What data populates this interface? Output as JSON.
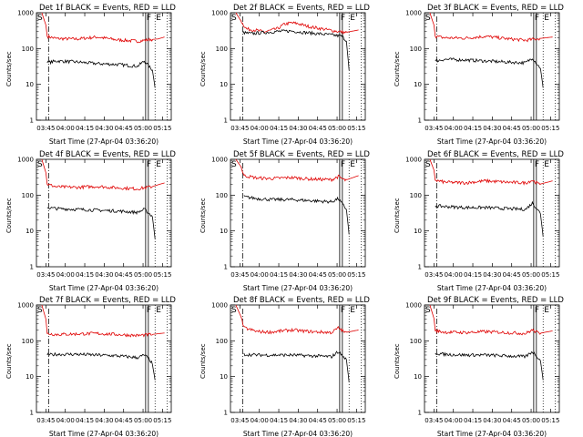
{
  "figure": {
    "start_time_label": "Start Time (27-Apr-04 03:36:20)"
  },
  "chart_data": [
    {
      "type": "line",
      "title": "Det 1f BLACK = Events, RED = LLD",
      "ylabel": "Counts/sec",
      "xlabel": "Start Time (27-Apr-04 03:36:20)",
      "y_scale": "log",
      "ylim": [
        1,
        1000
      ],
      "y_ticks": [
        "1",
        "10",
        "100",
        "1000"
      ],
      "x_tick_labels": [
        "03:45",
        "04:00",
        "04:15",
        "04:30",
        "04:45",
        "05:00",
        "05:15"
      ],
      "markers": [
        "S",
        "F",
        "E"
      ],
      "series": [
        {
          "color": "#e00000",
          "points": [
            [
              4,
              1000
            ],
            [
              7,
              450
            ],
            [
              8,
              220
            ],
            [
              15,
              190
            ],
            [
              30,
              185
            ],
            [
              45,
              210
            ],
            [
              60,
              175
            ],
            [
              75,
              160
            ],
            [
              85,
              180
            ],
            [
              90,
              185
            ],
            [
              95,
              210
            ]
          ]
        },
        {
          "color": "#000000",
          "points": [
            [
              8,
              40
            ],
            [
              15,
              45
            ],
            [
              30,
              42
            ],
            [
              45,
              38
            ],
            [
              60,
              36
            ],
            [
              75,
              32
            ],
            [
              80,
              45
            ],
            [
              84,
              30
            ],
            [
              86,
              25
            ],
            [
              88,
              8
            ]
          ]
        }
      ]
    },
    {
      "type": "line",
      "title": "Det 2f BLACK = Events, RED = LLD",
      "ylabel": "Counts/sec",
      "xlabel": "Start Time (27-Apr-04 03:36:20)",
      "y_scale": "log",
      "ylim": [
        1,
        1000
      ],
      "y_ticks": [
        "1",
        "10",
        "100",
        "1000"
      ],
      "x_tick_labels": [
        "03:45",
        "04:00",
        "04:15",
        "04:30",
        "04:45",
        "05:00",
        "05:15"
      ],
      "markers": [
        "S",
        "F",
        "E"
      ],
      "series": [
        {
          "color": "#e00000",
          "points": [
            [
              4,
              1000
            ],
            [
              9,
              500
            ],
            [
              12,
              350
            ],
            [
              18,
              330
            ],
            [
              25,
              290
            ],
            [
              35,
              360
            ],
            [
              40,
              480
            ],
            [
              45,
              520
            ],
            [
              50,
              500
            ],
            [
              55,
              440
            ],
            [
              60,
              400
            ],
            [
              75,
              320
            ],
            [
              85,
              280
            ],
            [
              95,
              330
            ]
          ]
        },
        {
          "color": "#000000",
          "points": [
            [
              9,
              280
            ],
            [
              15,
              260
            ],
            [
              25,
              280
            ],
            [
              35,
              300
            ],
            [
              45,
              310
            ],
            [
              55,
              280
            ],
            [
              65,
              260
            ],
            [
              75,
              240
            ],
            [
              83,
              220
            ],
            [
              86,
              160
            ],
            [
              88,
              25
            ]
          ]
        }
      ]
    },
    {
      "type": "line",
      "title": "Det 3f BLACK = Events, RED = LLD",
      "ylabel": "Counts/sec",
      "xlabel": "Start Time (27-Apr-04 03:36:20)",
      "y_scale": "log",
      "ylim": [
        1,
        1000
      ],
      "y_ticks": [
        "1",
        "10",
        "100",
        "1000"
      ],
      "x_tick_labels": [
        "03:45",
        "04:00",
        "04:15",
        "04:30",
        "04:45",
        "05:00",
        "05:15"
      ],
      "markers": [
        "S",
        "F",
        "E"
      ],
      "series": [
        {
          "color": "#e00000",
          "points": [
            [
              4,
              1000
            ],
            [
              7,
              450
            ],
            [
              8,
              220
            ],
            [
              15,
              200
            ],
            [
              30,
              195
            ],
            [
              45,
              220
            ],
            [
              60,
              190
            ],
            [
              75,
              170
            ],
            [
              85,
              190
            ],
            [
              95,
              210
            ]
          ]
        },
        {
          "color": "#000000",
          "points": [
            [
              8,
              45
            ],
            [
              15,
              50
            ],
            [
              30,
              48
            ],
            [
              45,
              45
            ],
            [
              60,
              42
            ],
            [
              75,
              40
            ],
            [
              80,
              55
            ],
            [
              84,
              35
            ],
            [
              86,
              28
            ],
            [
              88,
              8
            ]
          ]
        }
      ]
    },
    {
      "type": "line",
      "title": "Det 4f BLACK = Events, RED = LLD",
      "ylabel": "Counts/sec",
      "xlabel": "Start Time (27-Apr-04 03:36:20)",
      "y_scale": "log",
      "ylim": [
        1,
        1000
      ],
      "y_ticks": [
        "1",
        "10",
        "100",
        "1000"
      ],
      "x_tick_labels": [
        "03:45",
        "04:00",
        "04:15",
        "04:30",
        "04:45",
        "05:00",
        "05:15"
      ],
      "markers": [
        "S",
        "F",
        "E"
      ],
      "series": [
        {
          "color": "#e00000",
          "points": [
            [
              4,
              1000
            ],
            [
              7,
              420
            ],
            [
              8,
              200
            ],
            [
              15,
              170
            ],
            [
              30,
              165
            ],
            [
              45,
              175
            ],
            [
              60,
              160
            ],
            [
              75,
              150
            ],
            [
              85,
              170
            ],
            [
              95,
              220
            ]
          ]
        },
        {
          "color": "#000000",
          "points": [
            [
              8,
              45
            ],
            [
              15,
              42
            ],
            [
              30,
              40
            ],
            [
              45,
              38
            ],
            [
              60,
              36
            ],
            [
              75,
              33
            ],
            [
              80,
              40
            ],
            [
              84,
              30
            ],
            [
              86,
              25
            ],
            [
              88,
              6
            ]
          ]
        }
      ]
    },
    {
      "type": "line",
      "title": "Det 5f BLACK = Events, RED = LLD",
      "ylabel": "Counts/sec",
      "xlabel": "Start Time (27-Apr-04 03:36:20)",
      "y_scale": "log",
      "ylim": [
        1,
        1000
      ],
      "y_ticks": [
        "1",
        "10",
        "100",
        "1000"
      ],
      "x_tick_labels": [
        "03:45",
        "04:00",
        "04:15",
        "04:30",
        "04:45",
        "05:00",
        "05:15"
      ],
      "markers": [
        "S",
        "F",
        "E"
      ],
      "series": [
        {
          "color": "#e00000",
          "points": [
            [
              4,
              1000
            ],
            [
              8,
              600
            ],
            [
              10,
              350
            ],
            [
              20,
              300
            ],
            [
              30,
              290
            ],
            [
              45,
              310
            ],
            [
              60,
              280
            ],
            [
              75,
              270
            ],
            [
              80,
              330
            ],
            [
              85,
              260
            ],
            [
              95,
              350
            ]
          ]
        },
        {
          "color": "#000000",
          "points": [
            [
              10,
              90
            ],
            [
              20,
              80
            ],
            [
              30,
              75
            ],
            [
              45,
              75
            ],
            [
              60,
              70
            ],
            [
              75,
              65
            ],
            [
              80,
              80
            ],
            [
              84,
              50
            ],
            [
              86,
              40
            ],
            [
              88,
              8
            ]
          ]
        }
      ]
    },
    {
      "type": "line",
      "title": "Det 6f BLACK = Events, RED = LLD",
      "ylabel": "Counts/sec",
      "xlabel": "Start Time (27-Apr-04 03:36:20)",
      "y_scale": "log",
      "ylim": [
        1,
        1000
      ],
      "y_ticks": [
        "1",
        "10",
        "100",
        "1000"
      ],
      "x_tick_labels": [
        "03:45",
        "04:00",
        "04:15",
        "04:30",
        "04:45",
        "05:00",
        "05:15"
      ],
      "markers": [
        "S",
        "F",
        "E"
      ],
      "series": [
        {
          "color": "#e00000",
          "points": [
            [
              4,
              1000
            ],
            [
              7,
              500
            ],
            [
              8,
              260
            ],
            [
              15,
              230
            ],
            [
              30,
              220
            ],
            [
              45,
              250
            ],
            [
              60,
              230
            ],
            [
              75,
              220
            ],
            [
              80,
              260
            ],
            [
              85,
              200
            ],
            [
              95,
              250
            ]
          ]
        },
        {
          "color": "#000000",
          "points": [
            [
              8,
              50
            ],
            [
              15,
              48
            ],
            [
              30,
              45
            ],
            [
              45,
              45
            ],
            [
              60,
              42
            ],
            [
              75,
              40
            ],
            [
              80,
              60
            ],
            [
              84,
              40
            ],
            [
              86,
              30
            ],
            [
              88,
              7
            ]
          ]
        }
      ]
    },
    {
      "type": "line",
      "title": "Det 7f BLACK = Events, RED = LLD",
      "ylabel": "Counts/sec",
      "xlabel": "Start Time (27-Apr-04 03:36:20)",
      "y_scale": "log",
      "ylim": [
        1,
        1000
      ],
      "y_ticks": [
        "1",
        "10",
        "100",
        "1000"
      ],
      "x_tick_labels": [
        "03:45",
        "04:00",
        "04:15",
        "04:30",
        "04:45",
        "05:00",
        "05:15"
      ],
      "markers": [
        "S",
        "F",
        "E"
      ],
      "series": [
        {
          "color": "#e00000",
          "points": [
            [
              4,
              1000
            ],
            [
              7,
              400
            ],
            [
              8,
              160
            ],
            [
              15,
              150
            ],
            [
              30,
              155
            ],
            [
              45,
              160
            ],
            [
              60,
              150
            ],
            [
              75,
              140
            ],
            [
              85,
              150
            ],
            [
              95,
              165
            ]
          ]
        },
        {
          "color": "#000000",
          "points": [
            [
              8,
              40
            ],
            [
              15,
              42
            ],
            [
              30,
              42
            ],
            [
              45,
              40
            ],
            [
              60,
              38
            ],
            [
              75,
              34
            ],
            [
              80,
              40
            ],
            [
              84,
              30
            ],
            [
              86,
              22
            ],
            [
              88,
              8
            ]
          ]
        }
      ]
    },
    {
      "type": "line",
      "title": "Det 8f BLACK = Events, RED = LLD",
      "ylabel": "Counts/sec",
      "xlabel": "Start Time (27-Apr-04 03:36:20)",
      "y_scale": "log",
      "ylim": [
        1,
        1000
      ],
      "y_ticks": [
        "1",
        "10",
        "100",
        "1000"
      ],
      "x_tick_labels": [
        "03:45",
        "04:00",
        "04:15",
        "04:30",
        "04:45",
        "05:00",
        "05:15"
      ],
      "markers": [
        "S",
        "F",
        "E"
      ],
      "series": [
        {
          "color": "#e00000",
          "points": [
            [
              4,
              1000
            ],
            [
              8,
              450
            ],
            [
              10,
              230
            ],
            [
              20,
              180
            ],
            [
              30,
              175
            ],
            [
              45,
              200
            ],
            [
              60,
              180
            ],
            [
              75,
              170
            ],
            [
              80,
              230
            ],
            [
              85,
              170
            ],
            [
              95,
              200
            ]
          ]
        },
        {
          "color": "#000000",
          "points": [
            [
              10,
              42
            ],
            [
              20,
              40
            ],
            [
              30,
              40
            ],
            [
              45,
              40
            ],
            [
              60,
              38
            ],
            [
              75,
              36
            ],
            [
              80,
              50
            ],
            [
              84,
              35
            ],
            [
              86,
              30
            ],
            [
              88,
              7
            ]
          ]
        }
      ]
    },
    {
      "type": "line",
      "title": "Det 9f BLACK = Events, RED = LLD",
      "ylabel": "Counts/sec",
      "xlabel": "Start Time (27-Apr-04 03:36:20)",
      "y_scale": "log",
      "ylim": [
        1,
        1000
      ],
      "y_ticks": [
        "1",
        "10",
        "100",
        "1000"
      ],
      "x_tick_labels": [
        "03:45",
        "04:00",
        "04:15",
        "04:30",
        "04:45",
        "05:00",
        "05:15"
      ],
      "markers": [
        "S",
        "F",
        "E"
      ],
      "series": [
        {
          "color": "#e00000",
          "points": [
            [
              4,
              1000
            ],
            [
              7,
              420
            ],
            [
              8,
              190
            ],
            [
              15,
              175
            ],
            [
              30,
              170
            ],
            [
              45,
              180
            ],
            [
              60,
              170
            ],
            [
              75,
              160
            ],
            [
              80,
              200
            ],
            [
              85,
              160
            ],
            [
              95,
              190
            ]
          ]
        },
        {
          "color": "#000000",
          "points": [
            [
              8,
              45
            ],
            [
              15,
              42
            ],
            [
              30,
              40
            ],
            [
              45,
              40
            ],
            [
              60,
              38
            ],
            [
              75,
              36
            ],
            [
              80,
              50
            ],
            [
              84,
              35
            ],
            [
              86,
              28
            ],
            [
              88,
              8
            ]
          ]
        }
      ]
    }
  ]
}
